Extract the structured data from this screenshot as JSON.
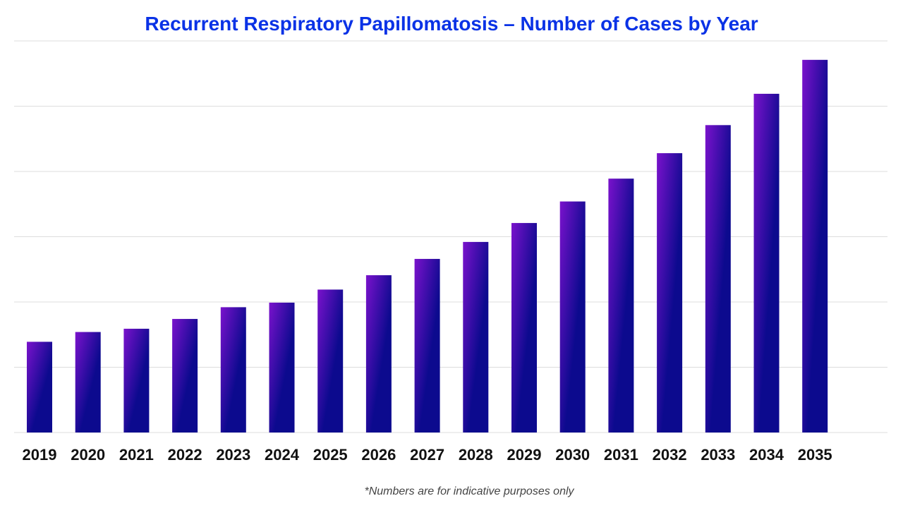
{
  "chart_data": {
    "type": "bar",
    "title": "Recurrent Respiratory Papillomatosis – Number of Cases by Year",
    "xlabel": "",
    "ylabel": "",
    "categories": [
      "2019",
      "2020",
      "2021",
      "2022",
      "2023",
      "2024",
      "2025",
      "2026",
      "2027",
      "2028",
      "2029",
      "2030",
      "2031",
      "2032",
      "2033",
      "2034",
      "2035"
    ],
    "values": [
      1.39,
      1.54,
      1.59,
      1.74,
      1.92,
      1.99,
      2.19,
      2.41,
      2.66,
      2.92,
      3.21,
      3.54,
      3.89,
      4.28,
      4.71,
      5.19,
      5.71
    ],
    "ylim": [
      0,
      6
    ],
    "grid": true,
    "y_tick_labels_shown": false,
    "colors": {
      "bar_light": "#7a12cc",
      "bar_dark": "#0c0a8e",
      "title": "#0a32e6",
      "grid": "#dddddd"
    }
  },
  "footnote": "*Numbers are for indicative purposes only"
}
